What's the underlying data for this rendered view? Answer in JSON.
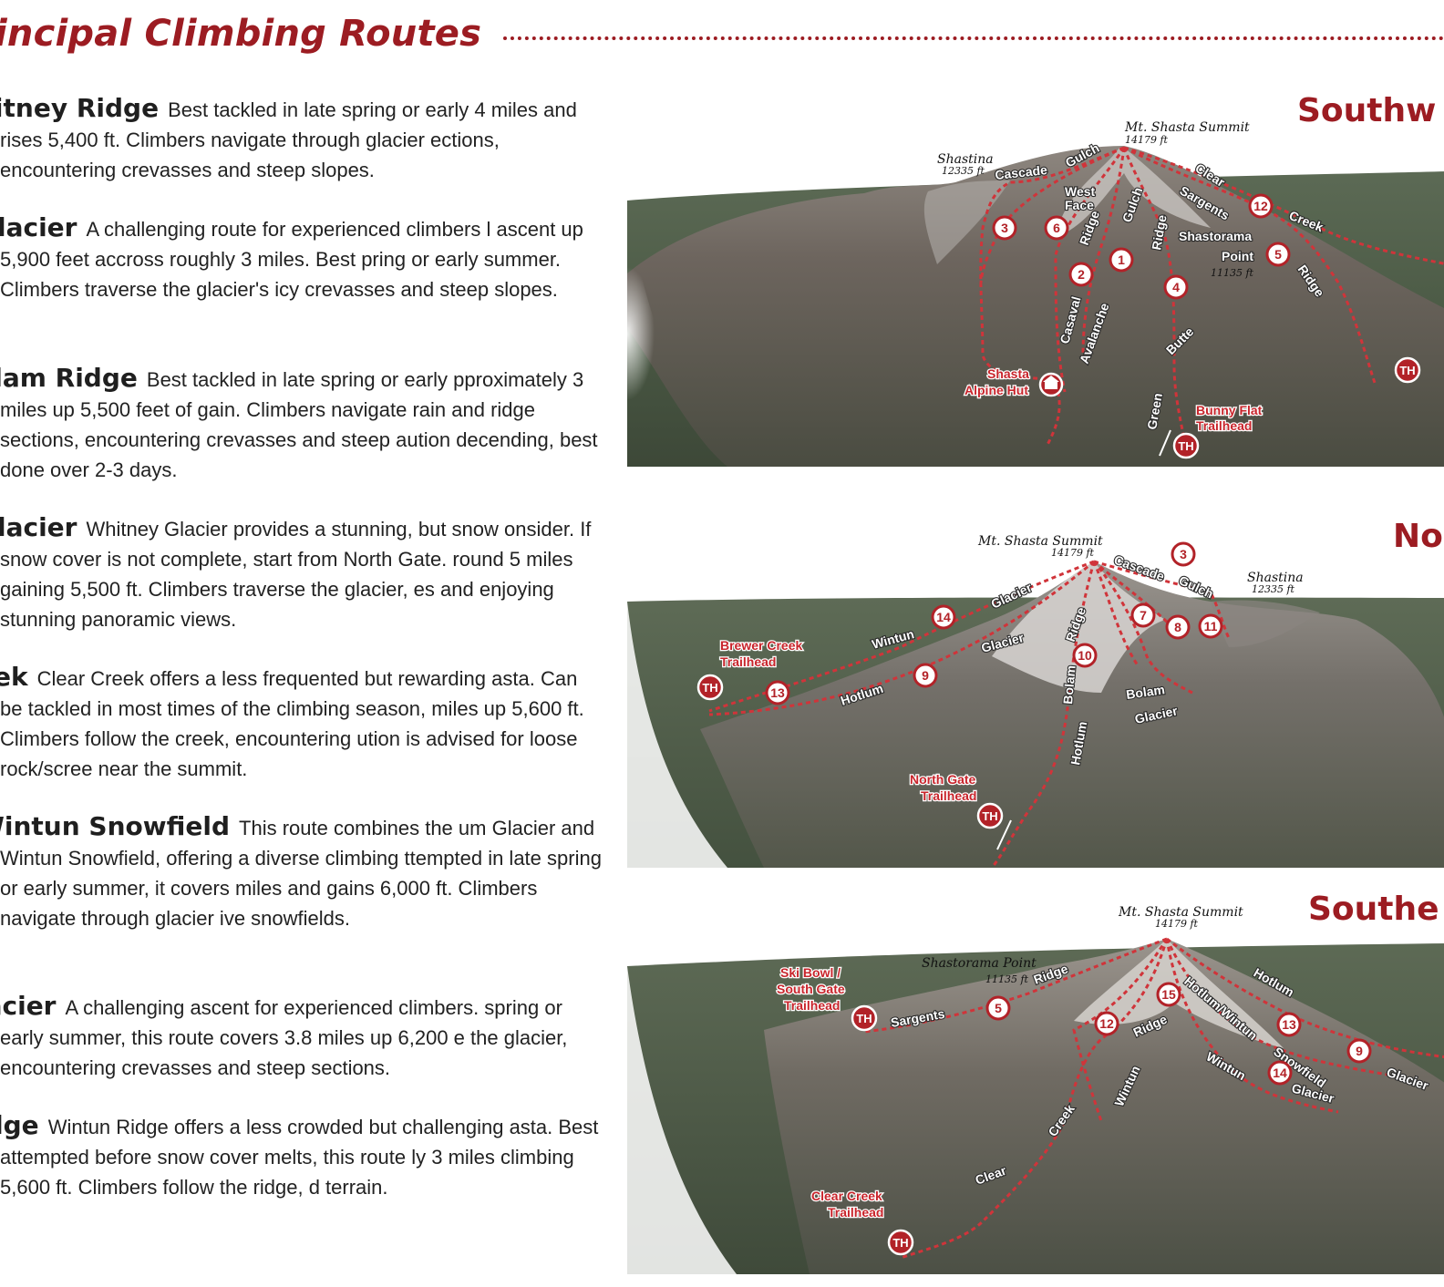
{
  "header": {
    "title": "incipal Climbing Routes"
  },
  "routes": [
    {
      "name": "hitney Ridge",
      "desc": "Best tackled in late spring or early 4 miles and rises 5,400 ft. Climbers navigate through glacier ections, encountering crevasses and steep slopes."
    },
    {
      "name": "Glacier",
      "desc": "A challenging route for experienced climbers l ascent up 5,900 feet accross roughly 3 miles. Best pring or early summer. Climbers traverse the glacier's icy crevasses and steep slopes."
    },
    {
      "name": "olam Ridge",
      "desc": "Best tackled in late spring or early pproximately 3 miles up 5,500 feet of gain. Climbers navigate rain and ridge sections, encountering crevasses and steep aution decending, best done over 2-3 days."
    },
    {
      "name": "Glacier",
      "desc": "Whitney Glacier provides a stunning, but snow onsider. If snow cover is not complete, start from North Gate. round 5 miles gaining 5,500 ft. Climbers traverse the glacier, es and enjoying stunning panoramic views."
    },
    {
      "name": "eek",
      "desc": "Clear Creek offers a less frequented but rewarding asta. Can be tackled in most times of the climbing season, miles up 5,600 ft. Climbers follow the creek, encountering ution is advised for loose rock/scree near the summit."
    },
    {
      "name": "Wintun Snowfield",
      "desc": "This route combines the um Glacier and Wintun Snowfield, offering a diverse climbing ttempted in late spring or early summer, it covers miles and gains 6,000 ft. Climbers navigate through glacier ive snowfields."
    },
    {
      "name": "lacier",
      "desc": "A challenging ascent for experienced climbers. spring or early summer, this route covers 3.8 miles up 6,200 e the glacier, encountering crevasses and steep sections."
    },
    {
      "name": "idge",
      "desc": "Wintun Ridge offers a less crowded but challenging asta. Best attempted before snow cover melts, this route ly 3 miles climbing 5,600 ft. Climbers follow the ridge, d terrain."
    }
  ],
  "maps": {
    "southwest": {
      "title": "Southw",
      "summit": "Mt. Shasta Summit",
      "summit_elev": "14179 ft",
      "shastina": "Shastina",
      "shastina_elev": "12335 ft",
      "labels": {
        "cascade": "Cascade",
        "gulch1": "Gulch",
        "west": "West",
        "face": "Face",
        "gulch2": "Gulch",
        "ridge1": "Ridge",
        "ridge2": "Ridge",
        "clear": "Clear",
        "sargents": "Sargents",
        "creek": "Creek",
        "shastorama": "Shastorama",
        "point": "Point",
        "point_elev": "11135 ft",
        "ridge3": "Ridge",
        "casaval": "Casaval",
        "avalanche": "Avalanche",
        "butte": "Butte",
        "green": "Green"
      },
      "hut1": "Shasta",
      "hut2": "Alpine Hut",
      "trail1": "Bunny Flat",
      "trail2": "Trailhead",
      "markers": [
        "3",
        "6",
        "12",
        "5",
        "2",
        "1",
        "4"
      ],
      "th": "TH"
    },
    "north": {
      "title": "No",
      "summit": "Mt. Shasta Summit",
      "summit_elev": "14179 ft",
      "shastina": "Shastina",
      "shastina_elev": "12335 ft",
      "labels": {
        "cascade": "Cascade",
        "gulch": "Gulch",
        "glacier1": "Glacier",
        "wintun": "Wintun",
        "glacier2": "Glacier",
        "ridge": "Ridge",
        "hotlum": "Hotlum",
        "bolam1": "Bolam",
        "bolam2": "Bolam",
        "glacier3": "Glacier",
        "hotlum2": "Hotlum"
      },
      "brewer1": "Brewer Creek",
      "brewer2": "Trailhead",
      "gate1": "North Gate",
      "gate2": "Trailhead",
      "markers": [
        "3",
        "14",
        "7",
        "8",
        "11",
        "10",
        "9",
        "13"
      ],
      "th": "TH"
    },
    "southeast": {
      "title": "Southe",
      "summit": "Mt. Shasta Summit",
      "summit_elev": "14179 ft",
      "shastorama": "Shastorama Point",
      "shastorama_elev": "11135 ft",
      "labels": {
        "ridge1": "Ridge",
        "sargents": "Sargents",
        "hotlum_wintun": "Hotlum/Wintun",
        "hotlum": "Hotlum",
        "ridge2": "Ridge",
        "wintun": "Wintun",
        "snowfield": "Snowfield",
        "wintun2": "Wintun",
        "glacier": "Glacier",
        "glacier2": "Glacier",
        "creek": "Creek",
        "clear": "Clear"
      },
      "ski1": "Ski Bowl /",
      "ski2": "South Gate",
      "ski3": "Trailhead",
      "clear1": "Clear Creek",
      "clear2": "Trailhead",
      "markers": [
        "15",
        "5",
        "12",
        "13",
        "9",
        "14"
      ],
      "th": "TH"
    }
  },
  "colors": {
    "accent": "#9c1c22",
    "route": "#d0343a"
  }
}
